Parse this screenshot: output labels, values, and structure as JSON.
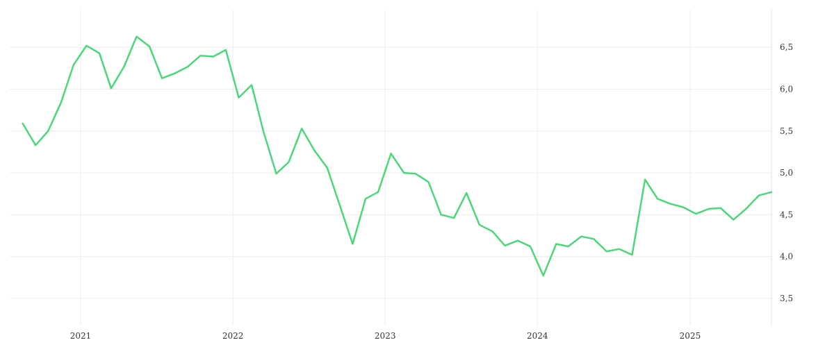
{
  "chart_data": {
    "type": "line",
    "x_start": "2020-08",
    "x_step": "month",
    "xlim": [
      "2020-07-15",
      "2025-07-15"
    ],
    "ylim": [
      3.25,
      6.95
    ],
    "x_ticks": [
      {
        "date": "2021-01-01",
        "label": "2021"
      },
      {
        "date": "2022-01-01",
        "label": "2022"
      },
      {
        "date": "2023-01-01",
        "label": "2023"
      },
      {
        "date": "2024-01-01",
        "label": "2024"
      },
      {
        "date": "2025-01-01",
        "label": "2025"
      }
    ],
    "y_ticks": [
      {
        "value": 3.5,
        "label": "3,5"
      },
      {
        "value": 4.0,
        "label": "4,0"
      },
      {
        "value": 4.5,
        "label": "4,5"
      },
      {
        "value": 5.0,
        "label": "5,0"
      },
      {
        "value": 5.5,
        "label": "5,5"
      },
      {
        "value": 6.0,
        "label": "6,0"
      },
      {
        "value": 6.5,
        "label": "6,5"
      }
    ],
    "grid": true,
    "y_axis_side": "right",
    "series": [
      {
        "color": "#4cd67a",
        "values": [
          5.59,
          5.33,
          5.5,
          5.84,
          6.29,
          6.52,
          6.43,
          6.01,
          6.27,
          6.63,
          6.51,
          6.13,
          6.19,
          6.27,
          6.4,
          6.39,
          6.47,
          5.9,
          6.05,
          5.5,
          4.99,
          5.13,
          5.53,
          5.27,
          5.06,
          4.6,
          4.15,
          4.69,
          4.77,
          5.23,
          5.0,
          4.99,
          4.89,
          4.5,
          4.46,
          4.76,
          4.38,
          4.3,
          4.13,
          4.19,
          4.12,
          3.77,
          4.15,
          4.12,
          4.24,
          4.21,
          4.06,
          4.09,
          4.02,
          4.92,
          4.69,
          4.63,
          4.59,
          4.51,
          4.57,
          4.58,
          4.44,
          4.57,
          4.73,
          4.77
        ]
      }
    ]
  }
}
